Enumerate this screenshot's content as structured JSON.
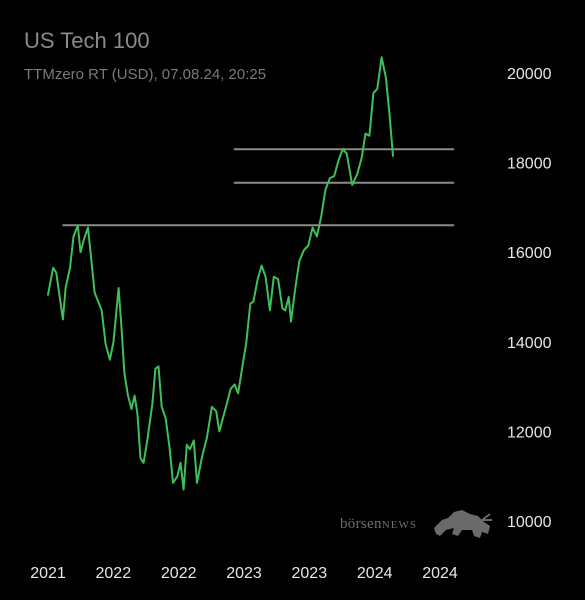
{
  "title": "US Tech 100",
  "subtitle": "TTMzero RT (USD), 07.08.24, 20:25",
  "watermark": {
    "text_a": "börsen",
    "text_b": "NEWS",
    "icon": "bull-icon"
  },
  "colors": {
    "background": "#000000",
    "line": "#3fbf5a",
    "level": "#8c8c8c",
    "tick": "#e6e6e6"
  },
  "chart_data": {
    "type": "line",
    "title": "US Tech 100",
    "subtitle": "TTMzero RT (USD), 07.08.24, 20:25",
    "y_axis_position": "right",
    "ylim": [
      9600,
      20800
    ],
    "y_ticks": [
      10000,
      12000,
      14000,
      16000,
      18000,
      20000
    ],
    "x_tick_labels": [
      "2021",
      "2022",
      "2022",
      "2023",
      "2023",
      "2024",
      "2024"
    ],
    "x_tick_positions": [
      0.0,
      0.1667,
      0.3333,
      0.5,
      0.6667,
      0.8333,
      1.0
    ],
    "xlim": [
      -0.04,
      1.04
    ],
    "series": [
      {
        "points": [
          [
            0.0,
            15050
          ],
          [
            0.013,
            15650
          ],
          [
            0.021,
            15550
          ],
          [
            0.038,
            14500
          ],
          [
            0.045,
            15200
          ],
          [
            0.056,
            15650
          ],
          [
            0.065,
            16350
          ],
          [
            0.076,
            16600
          ],
          [
            0.083,
            16000
          ],
          [
            0.092,
            16300
          ],
          [
            0.102,
            16550
          ],
          [
            0.112,
            15700
          ],
          [
            0.119,
            15100
          ],
          [
            0.137,
            14700
          ],
          [
            0.147,
            13950
          ],
          [
            0.158,
            13600
          ],
          [
            0.167,
            14000
          ],
          [
            0.18,
            15200
          ],
          [
            0.188,
            14250
          ],
          [
            0.195,
            13300
          ],
          [
            0.204,
            12800
          ],
          [
            0.213,
            12500
          ],
          [
            0.221,
            12800
          ],
          [
            0.228,
            12400
          ],
          [
            0.236,
            11400
          ],
          [
            0.244,
            11300
          ],
          [
            0.254,
            11850
          ],
          [
            0.266,
            12600
          ],
          [
            0.274,
            13400
          ],
          [
            0.282,
            13450
          ],
          [
            0.29,
            12550
          ],
          [
            0.3,
            12300
          ],
          [
            0.31,
            11650
          ],
          [
            0.319,
            10850
          ],
          [
            0.33,
            11000
          ],
          [
            0.338,
            11300
          ],
          [
            0.346,
            10700
          ],
          [
            0.354,
            11700
          ],
          [
            0.362,
            11600
          ],
          [
            0.372,
            11800
          ],
          [
            0.38,
            10850
          ],
          [
            0.392,
            11400
          ],
          [
            0.405,
            11850
          ],
          [
            0.418,
            12550
          ],
          [
            0.429,
            12450
          ],
          [
            0.437,
            12000
          ],
          [
            0.454,
            12550
          ],
          [
            0.466,
            12950
          ],
          [
            0.476,
            13050
          ],
          [
            0.485,
            12850
          ],
          [
            0.496,
            13450
          ],
          [
            0.506,
            14000
          ],
          [
            0.516,
            14850
          ],
          [
            0.524,
            14900
          ],
          [
            0.535,
            15400
          ],
          [
            0.545,
            15700
          ],
          [
            0.555,
            15450
          ],
          [
            0.566,
            14700
          ],
          [
            0.576,
            15450
          ],
          [
            0.587,
            15400
          ],
          [
            0.598,
            14750
          ],
          [
            0.605,
            14700
          ],
          [
            0.614,
            15000
          ],
          [
            0.62,
            14450
          ],
          [
            0.63,
            15150
          ],
          [
            0.641,
            15800
          ],
          [
            0.653,
            16050
          ],
          [
            0.664,
            16150
          ],
          [
            0.675,
            16550
          ],
          [
            0.686,
            16350
          ],
          [
            0.697,
            16800
          ],
          [
            0.708,
            17400
          ],
          [
            0.719,
            17650
          ],
          [
            0.73,
            17700
          ],
          [
            0.741,
            18050
          ],
          [
            0.752,
            18300
          ],
          [
            0.762,
            18200
          ],
          [
            0.776,
            17500
          ],
          [
            0.789,
            17750
          ],
          [
            0.8,
            18100
          ],
          [
            0.81,
            18650
          ],
          [
            0.82,
            18600
          ],
          [
            0.83,
            19550
          ],
          [
            0.84,
            19650
          ],
          [
            0.851,
            20350
          ],
          [
            0.862,
            19900
          ],
          [
            0.871,
            19100
          ],
          [
            0.88,
            18150
          ]
        ]
      }
    ],
    "horizontal_levels": [
      {
        "value": 18300,
        "x_range": [
          0.474,
          1.036
        ]
      },
      {
        "value": 17550,
        "x_range": [
          0.474,
          1.036
        ]
      },
      {
        "value": 16600,
        "x_range": [
          0.037,
          1.036
        ]
      }
    ],
    "grid": false,
    "legend": "none"
  }
}
